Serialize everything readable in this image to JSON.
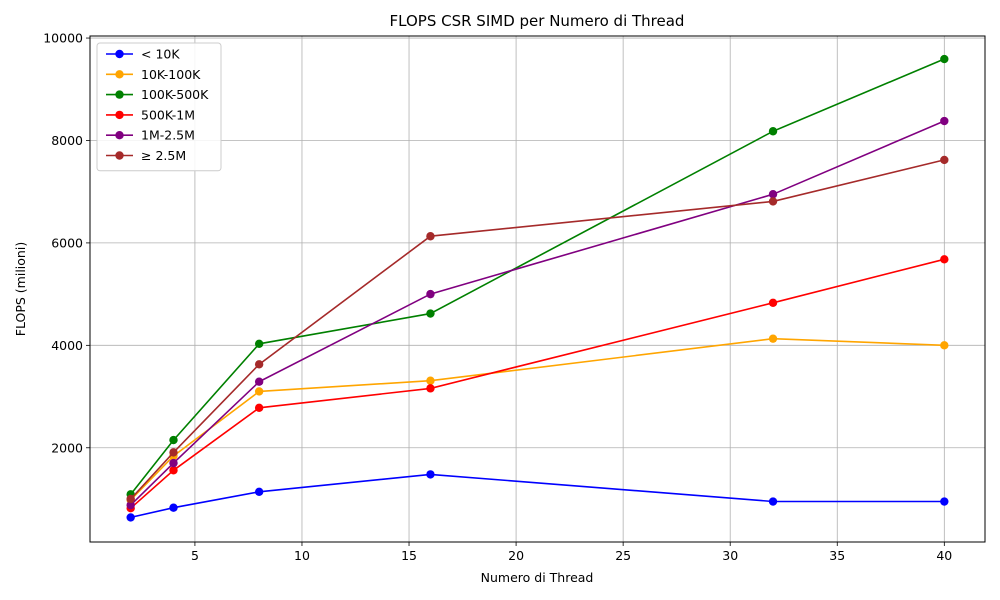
{
  "chart_data": {
    "type": "line",
    "title": "FLOPS CSR SIMD per Numero di Thread",
    "xlabel": "Numero di Thread",
    "ylabel": "FLOPS (milioni)",
    "x": [
      2,
      4,
      8,
      16,
      32,
      40
    ],
    "xlim": [
      0.1,
      41.9
    ],
    "ylim": [
      160,
      10040
    ],
    "xticks": [
      5,
      10,
      15,
      20,
      25,
      30,
      35,
      40
    ],
    "yticks": [
      2000,
      4000,
      6000,
      8000,
      10000
    ],
    "grid": true,
    "legend_position": "top-left",
    "series": [
      {
        "name": "< 10K",
        "color": "#0000ff",
        "values": [
          640,
          830,
          1140,
          1480,
          950,
          950
        ]
      },
      {
        "name": "10K-100K",
        "color": "#ffa500",
        "values": [
          980,
          1840,
          3100,
          3310,
          4130,
          4000
        ]
      },
      {
        "name": "100K-500K",
        "color": "#008000",
        "values": [
          1090,
          2150,
          4030,
          4620,
          8180,
          9590
        ]
      },
      {
        "name": "500K-1M",
        "color": "#ff0000",
        "values": [
          820,
          1560,
          2780,
          3160,
          4830,
          5680
        ]
      },
      {
        "name": "1M-2.5M",
        "color": "#800080",
        "values": [
          880,
          1700,
          3290,
          5000,
          6950,
          8380
        ]
      },
      {
        "name": "≥ 2.5M",
        "color": "#a52a2a",
        "values": [
          1000,
          1910,
          3630,
          6130,
          6810,
          7620
        ]
      }
    ]
  }
}
